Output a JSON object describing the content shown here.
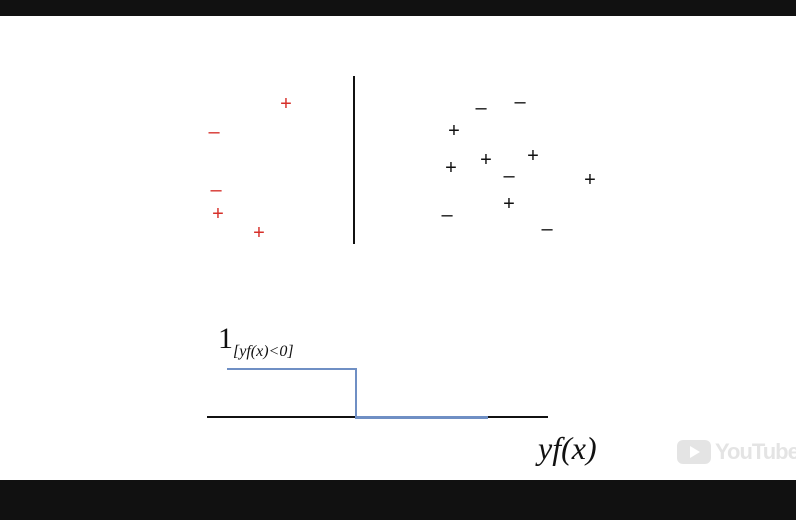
{
  "video": {
    "watermark": "YouTube",
    "watermark_icon": "youtube-play-icon"
  },
  "slide": {
    "indicator_label": {
      "one": "1",
      "subscript": "[yf(x)<0]"
    },
    "x_axis_label": "yf(x)",
    "colors": {
      "red_points": "#d6302a",
      "black_points": "#111111",
      "loss_curve": "#6f8fc4"
    },
    "red_points": [
      {
        "symbol": "+"
      },
      {
        "symbol": "–"
      },
      {
        "symbol": "–"
      },
      {
        "symbol": "+"
      },
      {
        "symbol": "+"
      }
    ],
    "black_points": [
      {
        "symbol": "–"
      },
      {
        "symbol": "–"
      },
      {
        "symbol": "+"
      },
      {
        "symbol": "+"
      },
      {
        "symbol": "+"
      },
      {
        "symbol": "–"
      },
      {
        "symbol": "+"
      },
      {
        "symbol": "+"
      },
      {
        "symbol": "–"
      },
      {
        "symbol": "+"
      },
      {
        "symbol": "–"
      }
    ]
  }
}
